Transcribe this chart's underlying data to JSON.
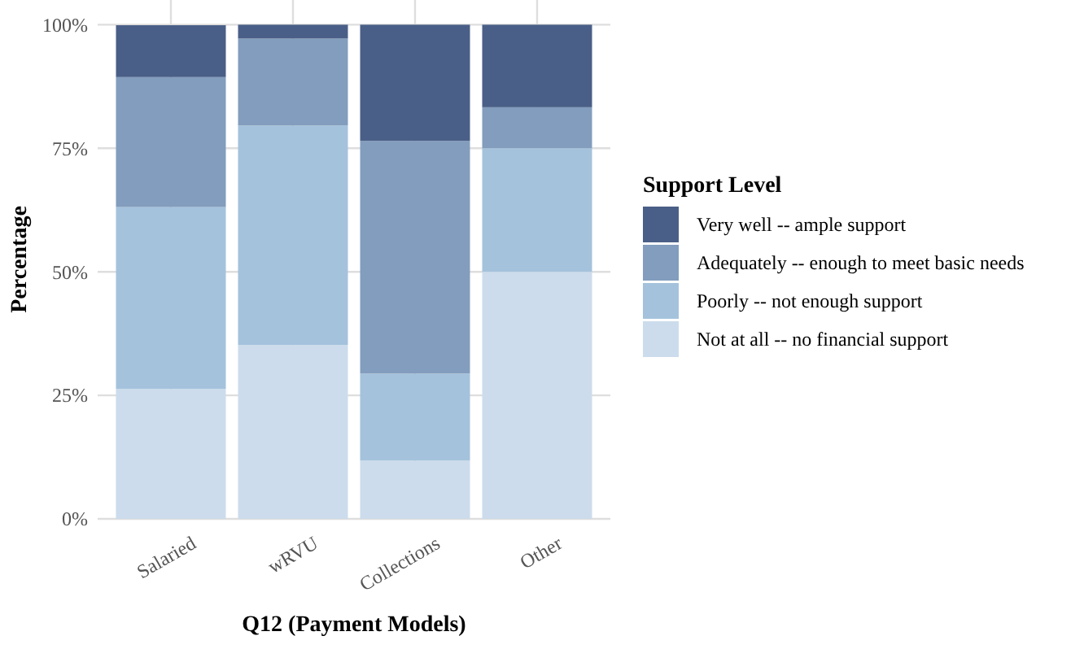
{
  "chart_data": {
    "type": "bar",
    "stacked": true,
    "xlabel": "Q12 (Payment Models)",
    "ylabel": "Percentage",
    "legend_title": "Support Level",
    "legend": "right",
    "grid": true,
    "categories": [
      "Salaried",
      "wRVU",
      "Collections",
      "Other"
    ],
    "ylim": [
      0,
      105
    ],
    "yticks": [
      {
        "value": 0,
        "label": "0%"
      },
      {
        "value": 25,
        "label": "25%"
      },
      {
        "value": 50,
        "label": "50%"
      },
      {
        "value": 75,
        "label": "75%"
      },
      {
        "value": 100,
        "label": "100%"
      }
    ],
    "series": [
      {
        "name": "Not at all -- no financial support",
        "color": "#ccdcec",
        "values": [
          26.3,
          35.2,
          11.8,
          50
        ]
      },
      {
        "name": "Poorly -- not enough support",
        "color": "#a4c2dc",
        "values": [
          36.8,
          44.4,
          17.6,
          25
        ]
      },
      {
        "name": "Adequately -- enough to meet basic needs",
        "color": "#829dbd",
        "values": [
          26.3,
          17.6,
          47.1,
          8.3
        ]
      },
      {
        "name": "Very well -- ample support",
        "color": "#4a5f87",
        "values": [
          10.5,
          2.8,
          23.5,
          16.7
        ]
      }
    ]
  }
}
